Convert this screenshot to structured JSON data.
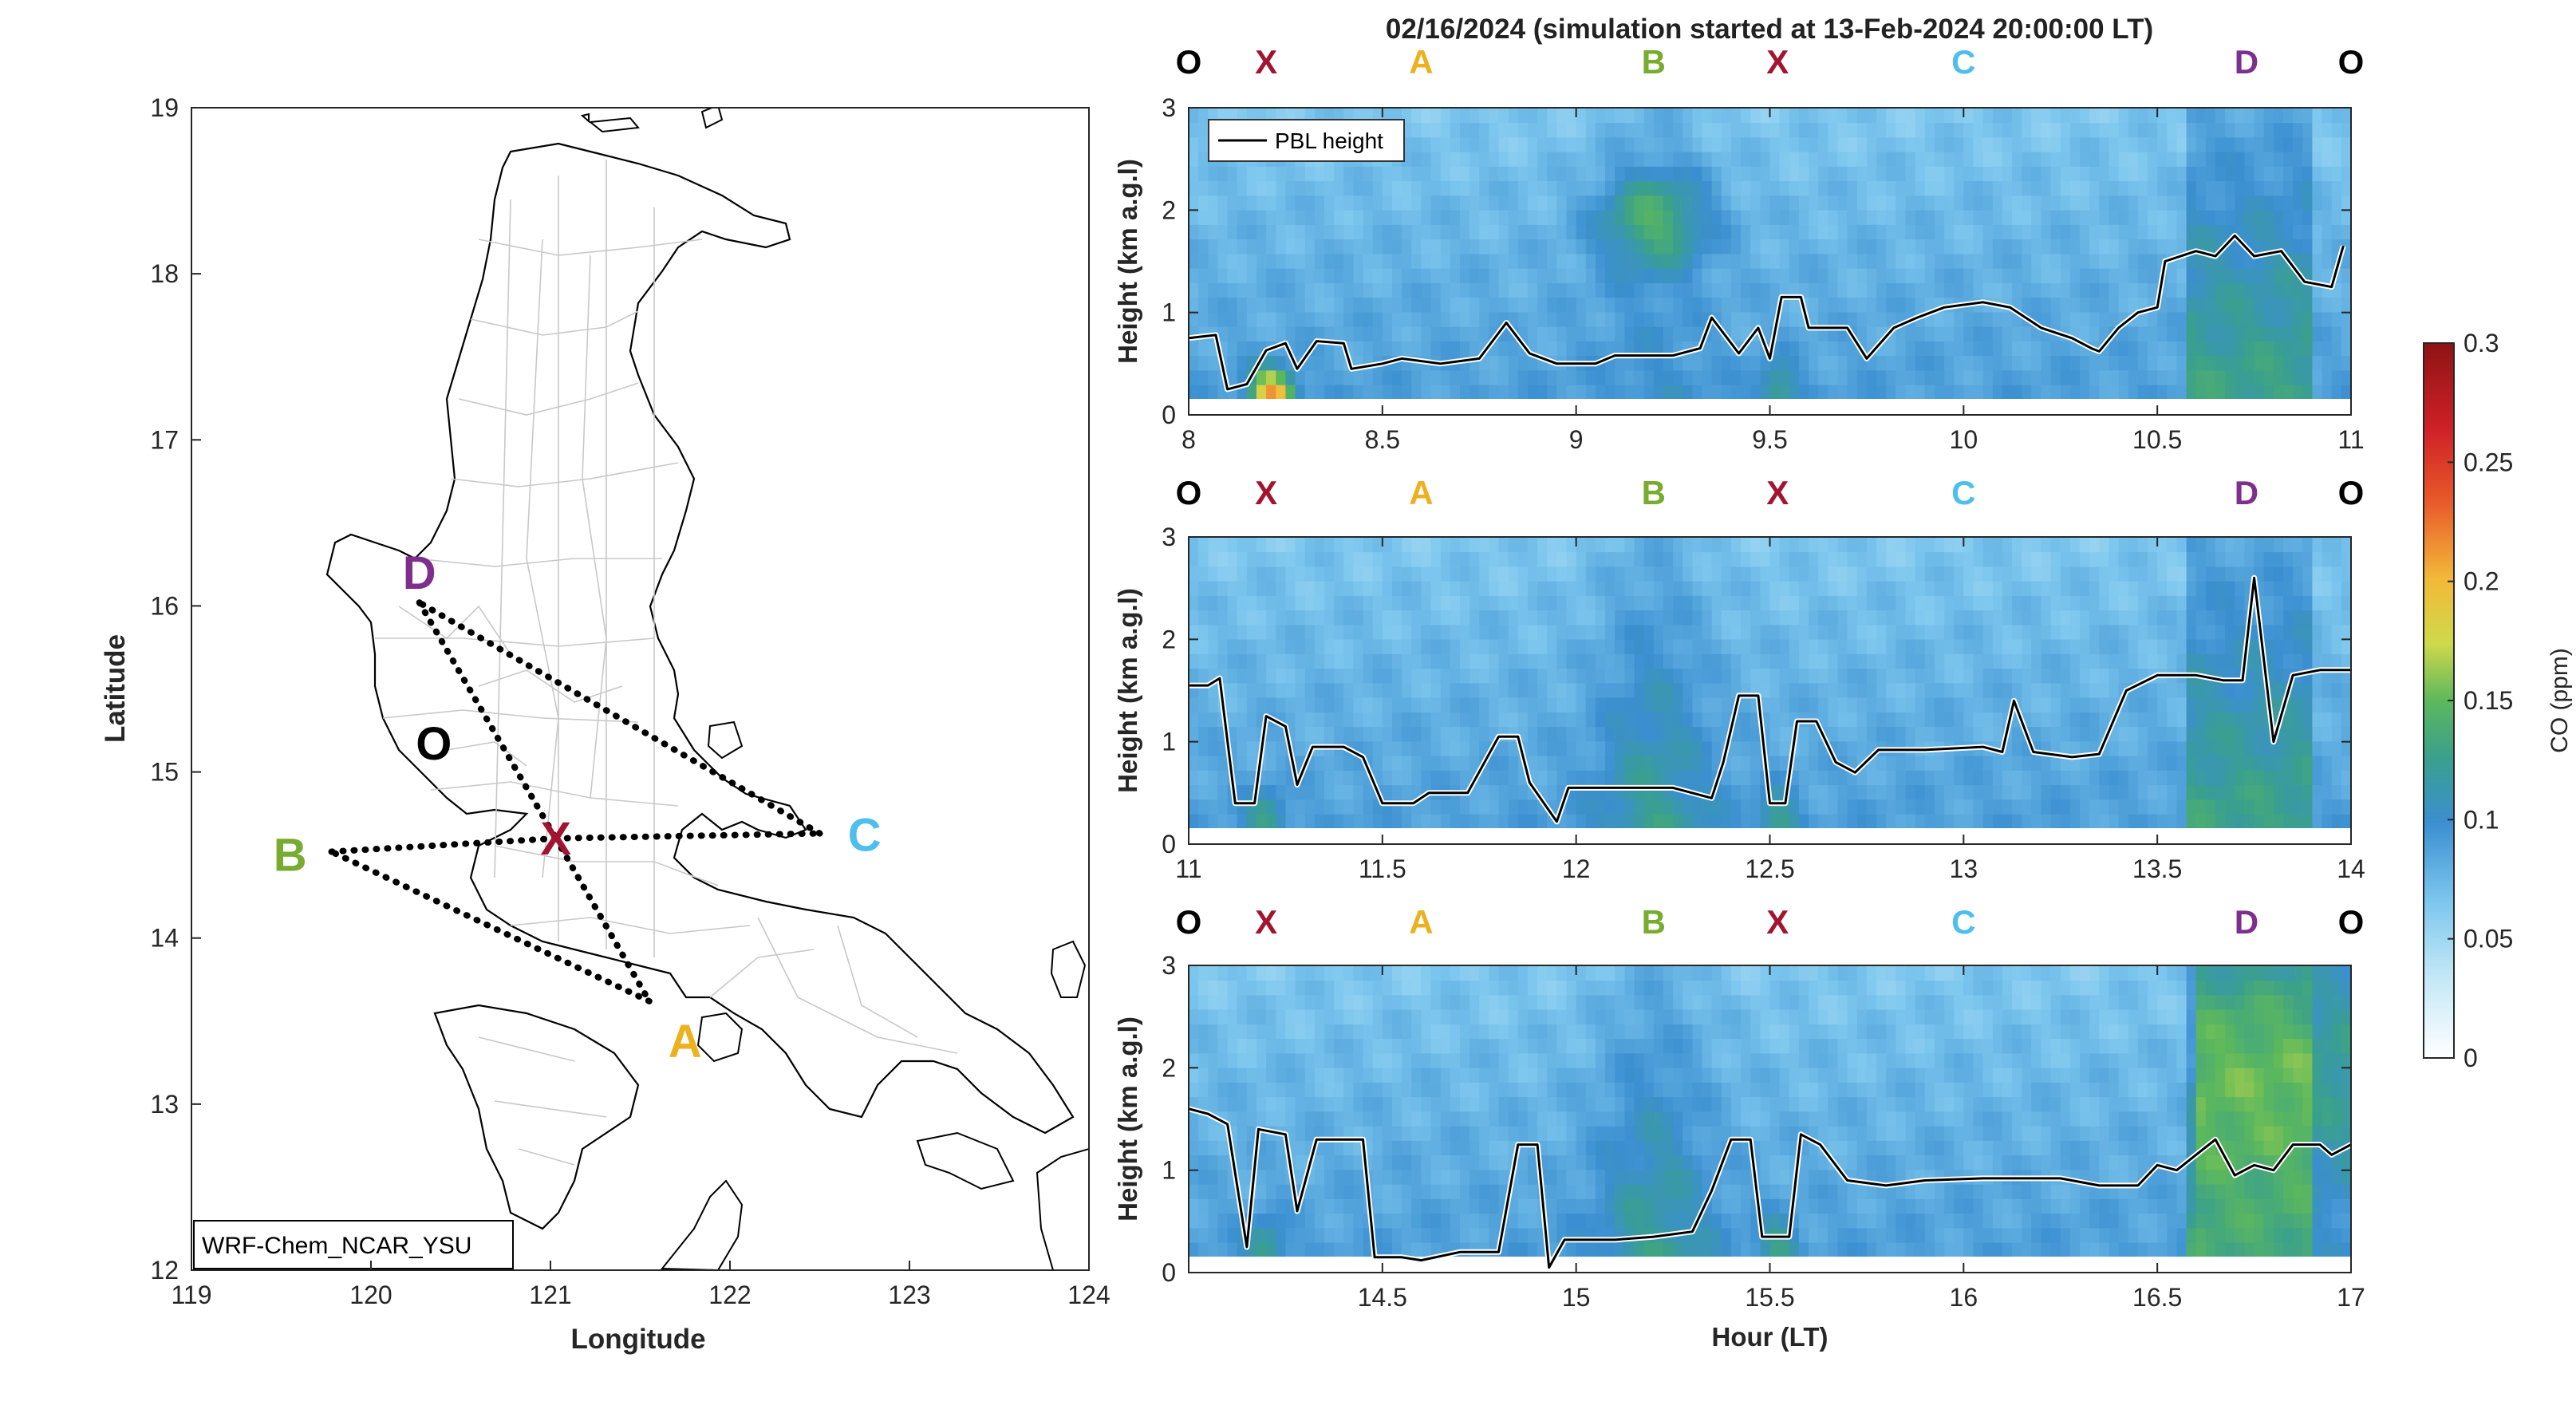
{
  "title": "02/16/2024 (simulation started at 13-Feb-2024 20:00:00 LT)",
  "colors": {
    "O": "#000000",
    "X": "#a2142f",
    "A": "#edb120",
    "B": "#77ac30",
    "C": "#4dbeee",
    "D": "#7e2f8e"
  },
  "chart_data": [
    {
      "type": "map",
      "xlabel": "Longitude",
      "ylabel": "Latitude",
      "xlim": [
        119,
        124
      ],
      "ylim": [
        12,
        19
      ],
      "xticks": [
        "119",
        "120",
        "121",
        "122",
        "123",
        "124"
      ],
      "yticks": [
        "12",
        "13",
        "14",
        "15",
        "16",
        "17",
        "18",
        "19"
      ],
      "label_box": "WRF-Chem_NCAR_YSU",
      "points": [
        {
          "name": "O",
          "lon": 120.35,
          "lat": 15.17
        },
        {
          "name": "X",
          "lon": 121.03,
          "lat": 14.6
        },
        {
          "name": "A",
          "lon": 121.75,
          "lat": 13.38
        },
        {
          "name": "B",
          "lon": 119.55,
          "lat": 14.5
        },
        {
          "name": "C",
          "lon": 122.75,
          "lat": 14.62
        },
        {
          "name": "D",
          "lon": 120.27,
          "lat": 16.2
        }
      ],
      "route": [
        [
          120.27,
          16.02
        ],
        [
          121.03,
          14.6
        ],
        [
          121.55,
          13.62
        ],
        [
          119.78,
          14.52
        ],
        [
          121.03,
          14.6
        ],
        [
          122.5,
          14.63
        ],
        [
          120.27,
          16.02
        ]
      ]
    },
    {
      "type": "heatmap",
      "ylabel": "Height (km a.g.l)",
      "xlim": [
        8,
        11
      ],
      "ylim": [
        0,
        3
      ],
      "xticks": [
        "8",
        "8.5",
        "9",
        "9.5",
        "10",
        "10.5",
        "11"
      ],
      "yticks": [
        "0",
        "1",
        "2",
        "3"
      ],
      "legend": "PBL height",
      "segment_labels": [
        "O",
        "X",
        "A",
        "B",
        "X",
        "C",
        "D",
        "O"
      ],
      "segment_positions": [
        8.0,
        8.2,
        8.6,
        9.2,
        9.52,
        10.0,
        10.73,
        11.0
      ],
      "pbl_height_km": [
        [
          8.0,
          0.75
        ],
        [
          8.07,
          0.78
        ],
        [
          8.1,
          0.25
        ],
        [
          8.15,
          0.3
        ],
        [
          8.2,
          0.63
        ],
        [
          8.25,
          0.7
        ],
        [
          8.28,
          0.45
        ],
        [
          8.33,
          0.72
        ],
        [
          8.4,
          0.7
        ],
        [
          8.42,
          0.45
        ],
        [
          8.5,
          0.5
        ],
        [
          8.55,
          0.55
        ],
        [
          8.65,
          0.5
        ],
        [
          8.75,
          0.55
        ],
        [
          8.82,
          0.9
        ],
        [
          8.88,
          0.6
        ],
        [
          8.95,
          0.5
        ],
        [
          9.05,
          0.5
        ],
        [
          9.1,
          0.58
        ],
        [
          9.25,
          0.58
        ],
        [
          9.32,
          0.65
        ],
        [
          9.35,
          0.95
        ],
        [
          9.42,
          0.6
        ],
        [
          9.47,
          0.85
        ],
        [
          9.5,
          0.55
        ],
        [
          9.53,
          1.15
        ],
        [
          9.58,
          1.15
        ],
        [
          9.6,
          0.85
        ],
        [
          9.7,
          0.85
        ],
        [
          9.75,
          0.55
        ],
        [
          9.82,
          0.85
        ],
        [
          9.88,
          0.95
        ],
        [
          9.95,
          1.05
        ],
        [
          10.05,
          1.1
        ],
        [
          10.12,
          1.05
        ],
        [
          10.2,
          0.85
        ],
        [
          10.28,
          0.75
        ],
        [
          10.33,
          0.65
        ],
        [
          10.35,
          0.62
        ],
        [
          10.4,
          0.85
        ],
        [
          10.45,
          1.0
        ],
        [
          10.5,
          1.05
        ],
        [
          10.52,
          1.5
        ],
        [
          10.6,
          1.6
        ],
        [
          10.65,
          1.55
        ],
        [
          10.7,
          1.75
        ],
        [
          10.75,
          1.55
        ],
        [
          10.82,
          1.6
        ],
        [
          10.88,
          1.3
        ],
        [
          10.95,
          1.25
        ],
        [
          10.98,
          1.65
        ]
      ]
    },
    {
      "type": "heatmap",
      "ylabel": "Height (km a.g.l)",
      "xlim": [
        11,
        14
      ],
      "ylim": [
        0,
        3
      ],
      "xticks": [
        "11",
        "11.5",
        "12",
        "12.5",
        "13",
        "13.5",
        "14"
      ],
      "yticks": [
        "0",
        "1",
        "2",
        "3"
      ],
      "segment_labels": [
        "O",
        "X",
        "A",
        "B",
        "X",
        "C",
        "D",
        "O"
      ],
      "segment_positions": [
        11.0,
        11.2,
        11.6,
        12.2,
        12.52,
        13.0,
        13.73,
        14.0
      ],
      "pbl_height_km": [
        [
          11.0,
          1.55
        ],
        [
          11.05,
          1.55
        ],
        [
          11.08,
          1.62
        ],
        [
          11.12,
          0.4
        ],
        [
          11.17,
          0.4
        ],
        [
          11.2,
          1.25
        ],
        [
          11.25,
          1.15
        ],
        [
          11.28,
          0.58
        ],
        [
          11.32,
          0.95
        ],
        [
          11.4,
          0.95
        ],
        [
          11.45,
          0.85
        ],
        [
          11.5,
          0.4
        ],
        [
          11.58,
          0.4
        ],
        [
          11.62,
          0.5
        ],
        [
          11.72,
          0.5
        ],
        [
          11.8,
          1.05
        ],
        [
          11.85,
          1.05
        ],
        [
          11.88,
          0.6
        ],
        [
          11.95,
          0.22
        ],
        [
          11.98,
          0.55
        ],
        [
          12.1,
          0.55
        ],
        [
          12.25,
          0.55
        ],
        [
          12.35,
          0.45
        ],
        [
          12.38,
          0.8
        ],
        [
          12.42,
          1.45
        ],
        [
          12.47,
          1.45
        ],
        [
          12.5,
          0.4
        ],
        [
          12.54,
          0.4
        ],
        [
          12.57,
          1.2
        ],
        [
          12.62,
          1.2
        ],
        [
          12.67,
          0.8
        ],
        [
          12.72,
          0.7
        ],
        [
          12.78,
          0.92
        ],
        [
          12.9,
          0.92
        ],
        [
          13.05,
          0.95
        ],
        [
          13.1,
          0.9
        ],
        [
          13.13,
          1.4
        ],
        [
          13.18,
          0.9
        ],
        [
          13.28,
          0.85
        ],
        [
          13.35,
          0.88
        ],
        [
          13.42,
          1.5
        ],
        [
          13.5,
          1.65
        ],
        [
          13.6,
          1.65
        ],
        [
          13.67,
          1.6
        ],
        [
          13.72,
          1.6
        ],
        [
          13.75,
          2.6
        ],
        [
          13.8,
          1.0
        ],
        [
          13.85,
          1.65
        ],
        [
          13.92,
          1.7
        ],
        [
          14.0,
          1.7
        ]
      ]
    },
    {
      "type": "heatmap",
      "ylabel": "Height (km a.g.l)",
      "xlabel": "Hour (LT)",
      "xlim": [
        14,
        17
      ],
      "ylim": [
        0,
        3
      ],
      "xticks": [
        "14.5",
        "15",
        "15.5",
        "16",
        "16.5",
        "17"
      ],
      "yticks": [
        "0",
        "1",
        "2",
        "3"
      ],
      "segment_labels": [
        "O",
        "X",
        "A",
        "B",
        "X",
        "C",
        "D",
        "O"
      ],
      "segment_positions": [
        14.0,
        14.2,
        14.6,
        15.2,
        15.52,
        16.0,
        16.73,
        17.0
      ],
      "pbl_height_km": [
        [
          14.0,
          1.6
        ],
        [
          14.05,
          1.55
        ],
        [
          14.1,
          1.45
        ],
        [
          14.15,
          0.25
        ],
        [
          14.18,
          1.4
        ],
        [
          14.25,
          1.35
        ],
        [
          14.28,
          0.6
        ],
        [
          14.33,
          1.3
        ],
        [
          14.45,
          1.3
        ],
        [
          14.48,
          0.15
        ],
        [
          14.55,
          0.15
        ],
        [
          14.6,
          0.12
        ],
        [
          14.7,
          0.2
        ],
        [
          14.8,
          0.2
        ],
        [
          14.85,
          1.25
        ],
        [
          14.9,
          1.25
        ],
        [
          14.93,
          0.05
        ],
        [
          14.97,
          0.32
        ],
        [
          15.1,
          0.32
        ],
        [
          15.2,
          0.35
        ],
        [
          15.3,
          0.4
        ],
        [
          15.35,
          0.8
        ],
        [
          15.4,
          1.3
        ],
        [
          15.45,
          1.3
        ],
        [
          15.48,
          0.35
        ],
        [
          15.55,
          0.35
        ],
        [
          15.58,
          1.35
        ],
        [
          15.63,
          1.25
        ],
        [
          15.7,
          0.9
        ],
        [
          15.8,
          0.85
        ],
        [
          15.9,
          0.9
        ],
        [
          16.05,
          0.92
        ],
        [
          16.25,
          0.92
        ],
        [
          16.35,
          0.85
        ],
        [
          16.45,
          0.85
        ],
        [
          16.5,
          1.05
        ],
        [
          16.55,
          1.0
        ],
        [
          16.6,
          1.15
        ],
        [
          16.65,
          1.3
        ],
        [
          16.7,
          0.95
        ],
        [
          16.75,
          1.05
        ],
        [
          16.8,
          1.0
        ],
        [
          16.85,
          1.25
        ],
        [
          16.92,
          1.25
        ],
        [
          16.95,
          1.15
        ],
        [
          17.0,
          1.25
        ]
      ]
    },
    {
      "type": "colorbar",
      "label": "CO (ppm)",
      "ticks": [
        "0",
        "0.05",
        "0.1",
        "0.15",
        "0.2",
        "0.25",
        "0.3"
      ],
      "range": [
        0,
        0.3
      ]
    }
  ]
}
